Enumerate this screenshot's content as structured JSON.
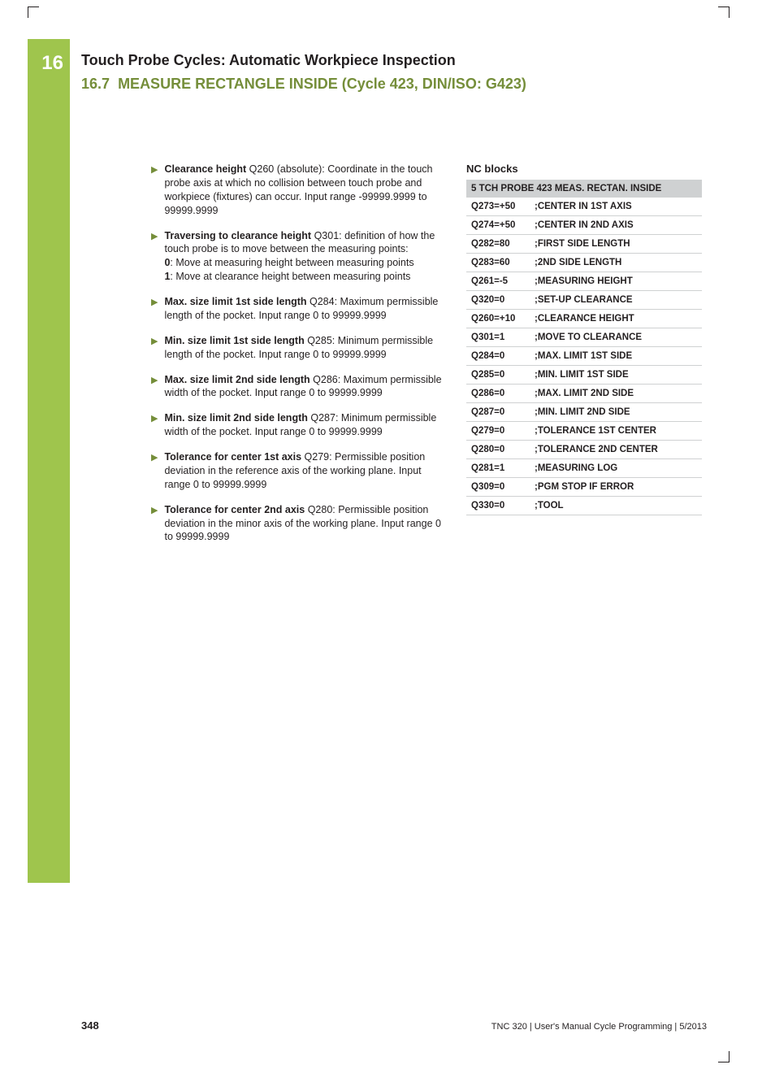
{
  "chapter_number": "16",
  "heading_main": "Touch Probe Cycles: Automatic Workpiece Inspection",
  "heading_sub_num": "16.7",
  "heading_sub_title": "MEASURE RECTANGLE INSIDE (Cycle 423, DIN/ISO: G423)",
  "params": [
    {
      "bold": "Clearance height",
      "rest": " Q260 (absolute): Coordinate in the touch probe axis at which no collision between touch probe and workpiece (fixtures) can occur. Input range -99999.9999 to 99999.9999"
    },
    {
      "bold": "Traversing to clearance height",
      "rest": " Q301: definition of how the touch probe is to move between the measuring points:",
      "extra": [
        {
          "b": "0",
          "t": ": Move at measuring height between measuring points"
        },
        {
          "b": "1",
          "t": ": Move at clearance height between measuring points"
        }
      ]
    },
    {
      "bold": "Max. size limit 1st side length",
      "rest": " Q284: Maximum permissible length of the pocket. Input range 0 to 99999.9999"
    },
    {
      "bold": "Min. size limit 1st side length",
      "rest": " Q285: Minimum permissible length of the pocket. Input range 0 to 99999.9999"
    },
    {
      "bold": "Max. size limit 2nd side length",
      "rest": " Q286: Maximum permissible width of the pocket. Input range 0 to 99999.9999"
    },
    {
      "bold": "Min. size limit 2nd side length",
      "rest": " Q287: Minimum permissible width of the pocket. Input range 0 to 99999.9999"
    },
    {
      "bold": "Tolerance for center 1st axis",
      "rest": " Q279: Permissible position deviation in the reference axis of the working plane. Input range 0 to 99999.9999"
    },
    {
      "bold": "Tolerance for center 2nd axis",
      "rest": " Q280: Permissible position deviation in the minor axis of the working plane. Input range 0 to 99999.9999"
    }
  ],
  "nc_title": "NC blocks",
  "nc_header": "5 TCH PROBE 423 MEAS. RECTAN. INSIDE",
  "nc_rows": [
    {
      "c1": "Q273=+50",
      "c2": ";CENTER IN 1ST AXIS"
    },
    {
      "c1": "Q274=+50",
      "c2": ";CENTER IN 2ND AXIS"
    },
    {
      "c1": "Q282=80",
      "c2": ";FIRST SIDE LENGTH"
    },
    {
      "c1": "Q283=60",
      "c2": ";2ND SIDE LENGTH"
    },
    {
      "c1": "Q261=-5",
      "c2": ";MEASURING HEIGHT"
    },
    {
      "c1": "Q320=0",
      "c2": ";SET-UP CLEARANCE"
    },
    {
      "c1": "Q260=+10",
      "c2": ";CLEARANCE HEIGHT"
    },
    {
      "c1": "Q301=1",
      "c2": ";MOVE TO CLEARANCE"
    },
    {
      "c1": "Q284=0",
      "c2": ";MAX. LIMIT 1ST SIDE"
    },
    {
      "c1": "Q285=0",
      "c2": ";MIN. LIMIT 1ST SIDE"
    },
    {
      "c1": "Q286=0",
      "c2": ";MAX. LIMIT 2ND SIDE"
    },
    {
      "c1": "Q287=0",
      "c2": ";MIN. LIMIT 2ND SIDE"
    },
    {
      "c1": "Q279=0",
      "c2": ";TOLERANCE 1ST CENTER"
    },
    {
      "c1": "Q280=0",
      "c2": ";TOLERANCE 2ND CENTER"
    },
    {
      "c1": "Q281=1",
      "c2": ";MEASURING LOG"
    },
    {
      "c1": "Q309=0",
      "c2": ";PGM STOP IF ERROR"
    },
    {
      "c1": "Q330=0",
      "c2": ";TOOL"
    }
  ],
  "page_number": "348",
  "footer_text": "TNC 320 | User's Manual Cycle Programming | 5/2013"
}
